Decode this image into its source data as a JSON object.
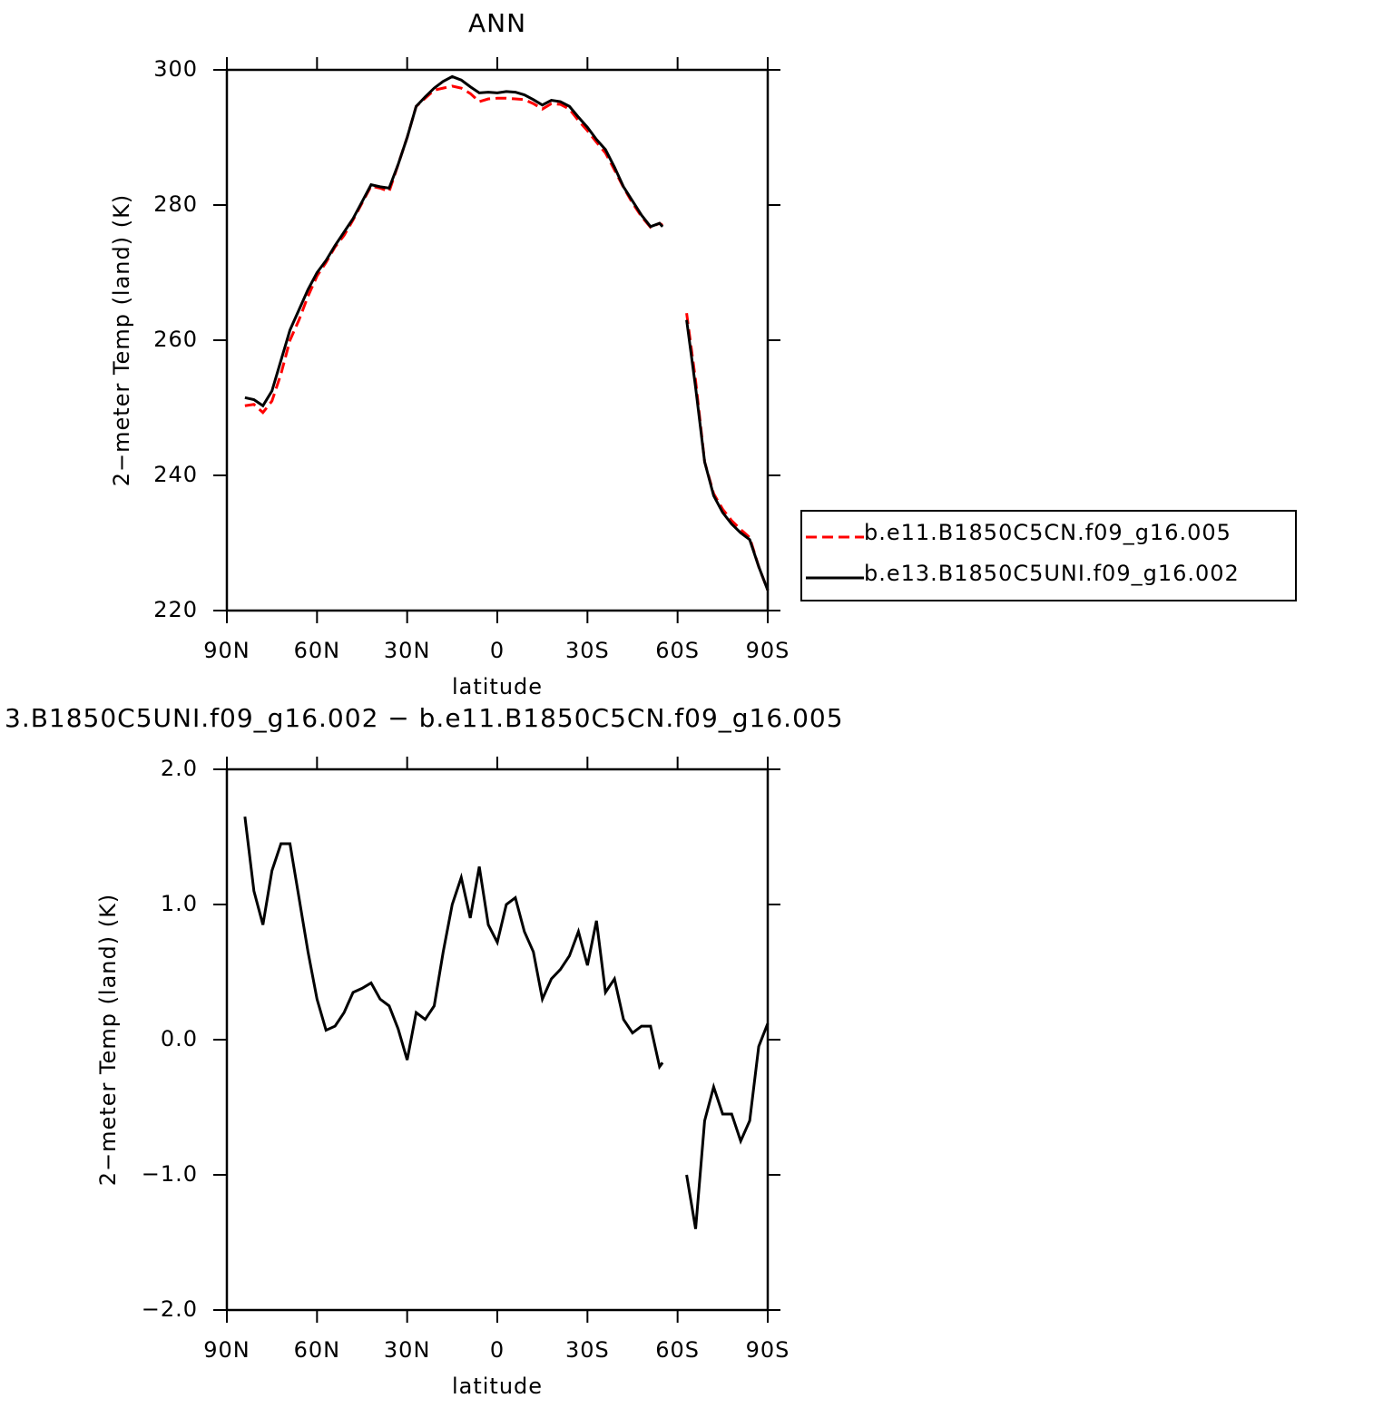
{
  "chart_data": [
    {
      "type": "line",
      "title": "ANN",
      "xlabel": "latitude",
      "ylabel": "2−meter Temp (land) (K)",
      "x": [
        84,
        81,
        78,
        75,
        72,
        69,
        66,
        63,
        60,
        57,
        54,
        51,
        48,
        45,
        42,
        39,
        36,
        33,
        30,
        27,
        24,
        21,
        18,
        15,
        12,
        9,
        6,
        3,
        0,
        -3,
        -6,
        -9,
        -12,
        -15,
        -18,
        -21,
        -24,
        -27,
        -30,
        -33,
        -36,
        -39,
        -42,
        -45,
        -48,
        -51,
        -54,
        -55,
        -57,
        -60,
        -63,
        -66,
        -69,
        -72,
        -75,
        -78,
        -81,
        -84,
        -87,
        -90
      ],
      "series": [
        {
          "name": "b.e11.B1850C5CN.f09_g16.005",
          "color": "#ff0000",
          "linestyle": "dashed",
          "values": [
            250.3,
            250.5,
            249.3,
            251,
            255,
            260,
            263,
            266.5,
            269.5,
            271.5,
            273.8,
            275.5,
            277.8,
            280.3,
            282.8,
            282.5,
            282,
            286,
            290,
            294.6,
            295.8,
            297,
            297.3,
            297.6,
            297.3,
            296.5,
            295.3,
            295.7,
            295.8,
            295.8,
            295.7,
            295.6,
            295,
            294.2,
            295,
            294.9,
            294.2,
            292.5,
            291,
            289.3,
            287.7,
            285.2,
            282.6,
            280.3,
            278.3,
            276.7,
            277.3,
            277,
            null,
            null,
            264,
            254,
            242,
            237.3,
            235,
            233.3,
            232,
            230.8,
            226.5,
            223
          ]
        },
        {
          "name": "b.e13.B1850C5UNI.f09_g16.002",
          "color": "#000000",
          "linestyle": "solid",
          "values": [
            251.5,
            251.2,
            250.3,
            252.5,
            257,
            261.5,
            264.5,
            267.5,
            270,
            271.8,
            274,
            276,
            278,
            280.5,
            283,
            282.7,
            282.5,
            286,
            290,
            294.6,
            296,
            297.3,
            298.3,
            299,
            298.5,
            297.5,
            296.6,
            296.7,
            296.6,
            296.8,
            296.7,
            296.3,
            295.6,
            294.8,
            295.5,
            295.3,
            294.6,
            293,
            291.5,
            289.7,
            288.2,
            285.6,
            282.7,
            280.6,
            278.5,
            276.8,
            277.3,
            276.8,
            null,
            null,
            263,
            253,
            242,
            237,
            234.5,
            232.8,
            231.5,
            230.5,
            226.5,
            223
          ]
        }
      ],
      "xlim": [
        90,
        -90
      ],
      "xticks": [
        {
          "value": 90,
          "label": "90N"
        },
        {
          "value": 60,
          "label": "60N"
        },
        {
          "value": 30,
          "label": "30N"
        },
        0,
        {
          "value": -30,
          "label": "30S"
        },
        {
          "value": -60,
          "label": "60S"
        },
        {
          "value": -90,
          "label": "90S"
        }
      ],
      "ylim": [
        220,
        300
      ],
      "yticks": [
        220,
        240,
        260,
        280,
        300
      ],
      "legend": "right"
    },
    {
      "type": "line",
      "title": "3.B1850C5UNI.f09_g16.002 − b.e11.B1850C5CN.f09_g16.005",
      "xlabel": "latitude",
      "ylabel": "2−meter Temp (land) (K)",
      "x": [
        84,
        81,
        78,
        75,
        72,
        69,
        66,
        63,
        60,
        57,
        54,
        51,
        48,
        45,
        42,
        39,
        36,
        33,
        30,
        27,
        24,
        21,
        18,
        15,
        12,
        9,
        6,
        3,
        0,
        -3,
        -6,
        -9,
        -12,
        -15,
        -18,
        -21,
        -24,
        -27,
        -30,
        -33,
        -36,
        -39,
        -42,
        -45,
        -48,
        -51,
        -54,
        -55,
        -57,
        -60,
        -63,
        -66,
        -69,
        -72,
        -75,
        -78,
        -81,
        -84,
        -87,
        -90
      ],
      "series": [
        {
          "color": "#000000",
          "linestyle": "solid",
          "values": [
            1.65,
            1.1,
            0.85,
            1.25,
            1.45,
            1.45,
            1.05,
            0.65,
            0.3,
            0.07,
            0.1,
            0.2,
            0.35,
            0.38,
            0.42,
            0.3,
            0.25,
            0.08,
            -0.15,
            0.2,
            0.15,
            0.25,
            0.65,
            1.0,
            1.2,
            0.9,
            1.28,
            0.85,
            0.72,
            1.0,
            1.05,
            0.8,
            0.65,
            0.3,
            0.45,
            0.52,
            0.62,
            0.8,
            0.55,
            0.88,
            0.35,
            0.45,
            0.15,
            0.05,
            0.1,
            0.1,
            -0.2,
            -0.17,
            null,
            null,
            -1.0,
            -1.4,
            -0.6,
            -0.35,
            -0.55,
            -0.55,
            -0.75,
            -0.6,
            -0.05,
            0.12
          ]
        }
      ],
      "xlim": [
        90,
        -90
      ],
      "xticks": [
        {
          "value": 90,
          "label": "90N"
        },
        {
          "value": 60,
          "label": "60N"
        },
        {
          "value": 30,
          "label": "30N"
        },
        0,
        {
          "value": -30,
          "label": "30S"
        },
        {
          "value": -60,
          "label": "60S"
        },
        {
          "value": -90,
          "label": "90S"
        }
      ],
      "ylim": [
        -2,
        2
      ],
      "yticks": [
        {
          "value": -2,
          "label": "−2.0"
        },
        {
          "value": -1,
          "label": "−1.0"
        },
        {
          "value": 0,
          "label": "0.0"
        },
        {
          "value": 1,
          "label": "1.0"
        },
        {
          "value": 2,
          "label": "2.0"
        }
      ]
    }
  ]
}
